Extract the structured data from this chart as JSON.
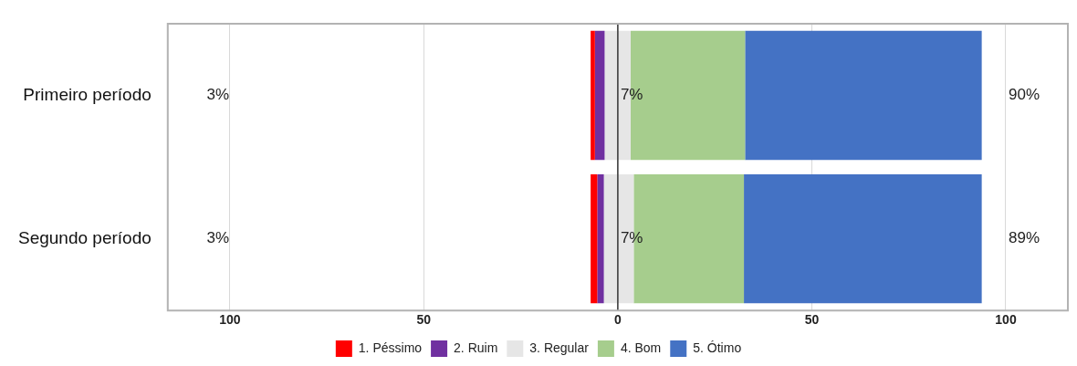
{
  "chart_data": {
    "type": "bar",
    "orientation": "horizontal",
    "categories": [
      "Primeiro período",
      "Segundo período"
    ],
    "series": [
      {
        "name": "1. Péssimo",
        "color": "#ff0000",
        "base": [
          -7.0,
          -7.0
        ],
        "values": [
          1.1,
          1.7
        ]
      },
      {
        "name": "2. Ruim",
        "color": "#7030a0",
        "base": [
          -5.9,
          -5.3
        ],
        "values": [
          2.5,
          1.7
        ]
      },
      {
        "name": "3. Regular",
        "color": "#e6e6e6",
        "base": [
          -3.4,
          -3.6
        ],
        "values": [
          6.7,
          7.7
        ]
      },
      {
        "name": "4. Bom",
        "color": "#a6cd8d",
        "base": [
          3.3,
          4.1
        ],
        "values": [
          29.5,
          28.4
        ]
      },
      {
        "name": "5. Ótimo",
        "color": "#4472c4",
        "base": [
          32.8,
          32.5
        ],
        "values": [
          61.0,
          61.3
        ]
      }
    ],
    "xlim": [
      -116,
      116
    ],
    "xticks": [
      {
        "value": -100,
        "label": "100"
      },
      {
        "value": -50,
        "label": "50"
      },
      0,
      50,
      100
    ],
    "ref_lines": [
      {
        "axis": "x",
        "value": 0,
        "color": "#333333"
      }
    ],
    "annotations": [
      "3%",
      {
        "text": "7%",
        "x": 0,
        "y": "Primeiro período"
      },
      "90%",
      "3%",
      {
        "text": "7%",
        "x": 0,
        "y": "Segundo período"
      },
      "89%"
    ],
    "grid": "x",
    "legend": "bottom"
  }
}
